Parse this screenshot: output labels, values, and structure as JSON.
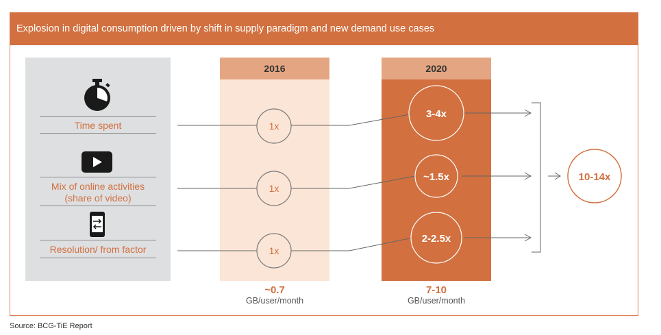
{
  "title": "Explosion in digital consumption driven by shift in supply paradigm and new demand use cases",
  "source": "Source: BCG-TiE Report",
  "columns": {
    "y2016": {
      "header": "2016",
      "total": "~0.7",
      "unit": "GB/user/month"
    },
    "y2020": {
      "header": "2020",
      "total": "7-10",
      "unit": "GB/user/month"
    }
  },
  "rows": [
    {
      "icon": "stopwatch-icon",
      "label": "Time spent",
      "v2016": "1x",
      "v2020": "3-4x"
    },
    {
      "icon": "video-play-icon",
      "label_line1": "Mix of online activities",
      "label_line2": "(share of video)",
      "v2016": "1x",
      "v2020": "~1.5x"
    },
    {
      "icon": "phone-rotate-icon",
      "label": "Resolution/ from factor",
      "v2016": "1x",
      "v2020": "2-2.5x"
    }
  ],
  "result": "10-14x",
  "colors": {
    "accent": "#d2703f",
    "header": "#e4a582",
    "light": "#fbe5d7",
    "panel": "#dedfe1"
  }
}
